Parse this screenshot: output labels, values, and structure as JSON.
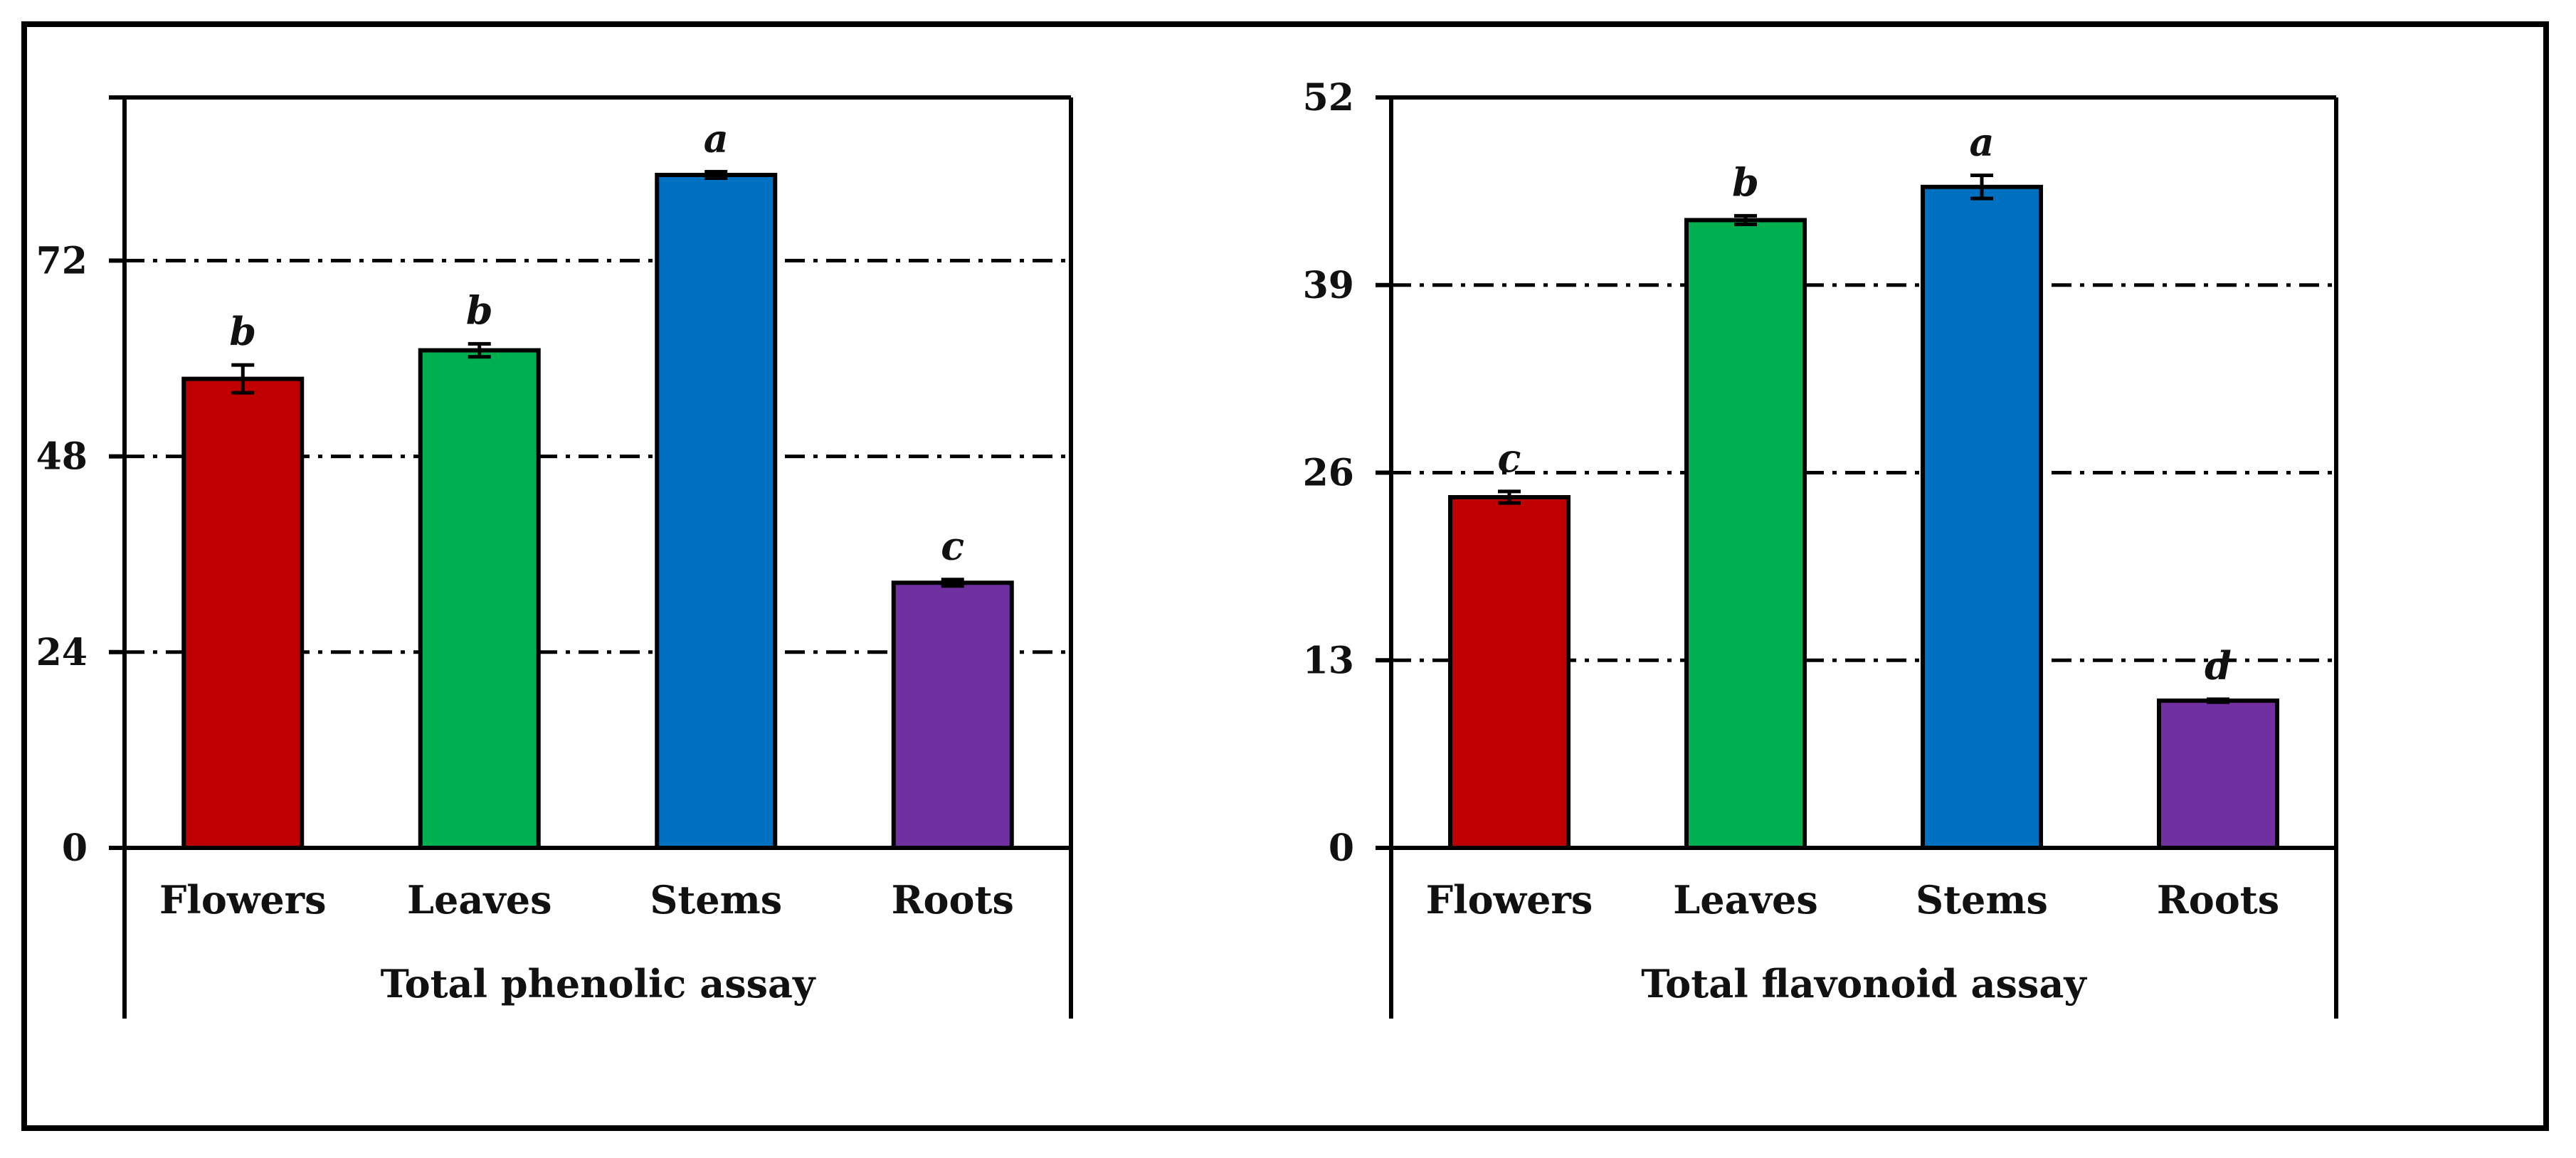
{
  "colors": {
    "flowers": "#C00000",
    "leaves": "#00B050",
    "stems": "#0070C0",
    "roots": "#7030A0"
  },
  "chart_data": [
    {
      "type": "bar",
      "categories": [
        "Flowers",
        "Leaves",
        "Stems",
        "Roots"
      ],
      "values": [
        57.5,
        61,
        82.5,
        32.5
      ],
      "errors": [
        1.7,
        0.8,
        0.4,
        0.4
      ],
      "letters": [
        "b",
        "b",
        "a",
        "c"
      ],
      "xlabel": "Total phenolic assay",
      "ylabel": "",
      "ylim": [
        0,
        92
      ],
      "yticks": [
        "0",
        "24",
        "48",
        "72"
      ],
      "ytick_values": [
        0,
        24,
        48,
        72
      ],
      "grid": "dash-dot horizontal",
      "legend": "none"
    },
    {
      "type": "bar",
      "categories": [
        "Flowers",
        "Leaves",
        "Stems",
        "Roots"
      ],
      "values": [
        24.3,
        43.5,
        45.8,
        10.2
      ],
      "errors": [
        0.4,
        0.3,
        0.8,
        0.1
      ],
      "letters": [
        "c",
        "b",
        "a",
        "d"
      ],
      "xlabel": "Total flavonoid assay",
      "ylabel": "",
      "ylim": [
        0,
        52
      ],
      "yticks": [
        "0",
        "13",
        "26",
        "39",
        "52"
      ],
      "ytick_values": [
        0,
        13,
        26,
        39,
        52
      ],
      "grid": "dash-dot horizontal",
      "legend": "none"
    }
  ]
}
